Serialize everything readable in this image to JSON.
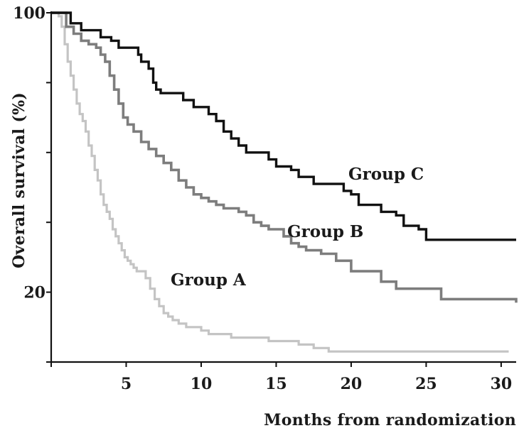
{
  "chart_data": {
    "type": "line",
    "step": true,
    "xlabel": "Months from randomization",
    "ylabel": "Overall survival (%)",
    "xlim": [
      0,
      31
    ],
    "ylim": [
      0,
      100
    ],
    "x_ticks": [
      0,
      5,
      10,
      15,
      20,
      25,
      30
    ],
    "x_tick_labels": [
      "5",
      "10",
      "15",
      "20",
      "25",
      "30"
    ],
    "y_ticks": [
      0,
      20,
      40,
      60,
      80,
      100
    ],
    "y_tick_labels": [
      "20",
      "100"
    ],
    "y_tick_label_values": [
      20,
      100
    ],
    "grid": false,
    "legend": "inline labels",
    "series": [
      {
        "name": "Group A",
        "color": "#c4c4c4",
        "points": [
          [
            0,
            100
          ],
          [
            0.3,
            100
          ],
          [
            0.5,
            99
          ],
          [
            0.7,
            96
          ],
          [
            0.9,
            91
          ],
          [
            1.1,
            86
          ],
          [
            1.3,
            82
          ],
          [
            1.5,
            78
          ],
          [
            1.7,
            74
          ],
          [
            1.9,
            71
          ],
          [
            2.1,
            69
          ],
          [
            2.3,
            66
          ],
          [
            2.5,
            62
          ],
          [
            2.7,
            59
          ],
          [
            2.9,
            55
          ],
          [
            3.1,
            52
          ],
          [
            3.3,
            48
          ],
          [
            3.5,
            45
          ],
          [
            3.7,
            43
          ],
          [
            3.9,
            41
          ],
          [
            4.1,
            38
          ],
          [
            4.3,
            36
          ],
          [
            4.5,
            34
          ],
          [
            4.7,
            32
          ],
          [
            4.9,
            30
          ],
          [
            5.1,
            29
          ],
          [
            5.3,
            28
          ],
          [
            5.5,
            27
          ],
          [
            5.7,
            26
          ],
          [
            6.0,
            26
          ],
          [
            6.3,
            24
          ],
          [
            6.6,
            21
          ],
          [
            6.9,
            18
          ],
          [
            7.2,
            16
          ],
          [
            7.5,
            14
          ],
          [
            7.8,
            13
          ],
          [
            8.1,
            12
          ],
          [
            8.5,
            11
          ],
          [
            9.0,
            10
          ],
          [
            9.5,
            10
          ],
          [
            10.0,
            9
          ],
          [
            10.5,
            8
          ],
          [
            11.0,
            8
          ],
          [
            12.0,
            7
          ],
          [
            13.0,
            7
          ],
          [
            14.5,
            6
          ],
          [
            15.5,
            6
          ],
          [
            16.5,
            5
          ],
          [
            17.5,
            4
          ],
          [
            18.5,
            3
          ],
          [
            20.0,
            3
          ],
          [
            25.0,
            3
          ],
          [
            30.5,
            3
          ]
        ]
      },
      {
        "name": "Group B",
        "color": "#7d7d7d",
        "points": [
          [
            0,
            100
          ],
          [
            0.5,
            100
          ],
          [
            1.0,
            96
          ],
          [
            1.5,
            94
          ],
          [
            2.0,
            92
          ],
          [
            2.5,
            91
          ],
          [
            3.0,
            90
          ],
          [
            3.3,
            88
          ],
          [
            3.6,
            86
          ],
          [
            3.9,
            82
          ],
          [
            4.2,
            78
          ],
          [
            4.5,
            74
          ],
          [
            4.8,
            70
          ],
          [
            5.1,
            68
          ],
          [
            5.5,
            66
          ],
          [
            6.0,
            63
          ],
          [
            6.5,
            61
          ],
          [
            7.0,
            59
          ],
          [
            7.5,
            57
          ],
          [
            8.0,
            55
          ],
          [
            8.5,
            52
          ],
          [
            9.0,
            50
          ],
          [
            9.5,
            48
          ],
          [
            10.0,
            47
          ],
          [
            10.5,
            46
          ],
          [
            11.0,
            45
          ],
          [
            11.5,
            44
          ],
          [
            12.0,
            44
          ],
          [
            12.5,
            43
          ],
          [
            13.0,
            42
          ],
          [
            13.5,
            40
          ],
          [
            14.0,
            39
          ],
          [
            14.5,
            38
          ],
          [
            15.0,
            38
          ],
          [
            15.5,
            36
          ],
          [
            16.0,
            34
          ],
          [
            16.5,
            33
          ],
          [
            17.0,
            32
          ],
          [
            18.0,
            31
          ],
          [
            19.0,
            29
          ],
          [
            20.0,
            26
          ],
          [
            21.0,
            26
          ],
          [
            22.0,
            23
          ],
          [
            23.0,
            21
          ],
          [
            24.0,
            21
          ],
          [
            25.0,
            21
          ],
          [
            26.0,
            18
          ],
          [
            28.0,
            18
          ],
          [
            31.0,
            17
          ]
        ]
      },
      {
        "name": "Group C",
        "color": "#111111",
        "points": [
          [
            0,
            100
          ],
          [
            1.0,
            100
          ],
          [
            1.3,
            97
          ],
          [
            2.0,
            95
          ],
          [
            3.0,
            95
          ],
          [
            3.3,
            93
          ],
          [
            4.0,
            92
          ],
          [
            4.5,
            90
          ],
          [
            5.5,
            90
          ],
          [
            5.8,
            88
          ],
          [
            6.0,
            86
          ],
          [
            6.5,
            84
          ],
          [
            6.8,
            80
          ],
          [
            7.0,
            78
          ],
          [
            7.3,
            77
          ],
          [
            8.5,
            77
          ],
          [
            8.8,
            75
          ],
          [
            9.0,
            75
          ],
          [
            9.5,
            73
          ],
          [
            10.0,
            73
          ],
          [
            10.5,
            71
          ],
          [
            11.0,
            69
          ],
          [
            11.5,
            66
          ],
          [
            12.0,
            64
          ],
          [
            12.5,
            62
          ],
          [
            13.0,
            60
          ],
          [
            14.0,
            60
          ],
          [
            14.5,
            58
          ],
          [
            15.0,
            56
          ],
          [
            16.0,
            55
          ],
          [
            16.5,
            53
          ],
          [
            17.5,
            51
          ],
          [
            19.0,
            51
          ],
          [
            19.5,
            49
          ],
          [
            20.0,
            48
          ],
          [
            20.5,
            45
          ],
          [
            21.5,
            45
          ],
          [
            22.0,
            43
          ],
          [
            23.0,
            42
          ],
          [
            23.5,
            39
          ],
          [
            24.5,
            38
          ],
          [
            25.0,
            35
          ],
          [
            26.0,
            35
          ],
          [
            31.0,
            35
          ]
        ]
      }
    ]
  }
}
